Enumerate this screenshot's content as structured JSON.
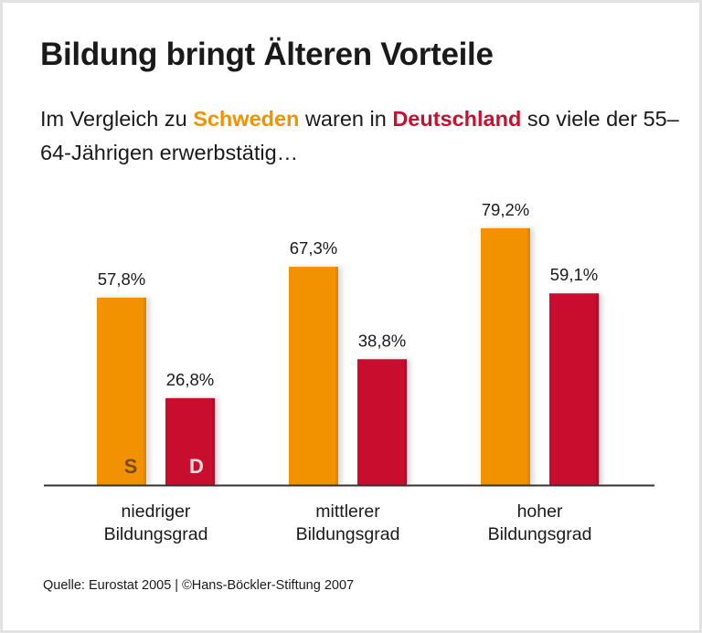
{
  "title": "Bildung bringt Älteren Vorteile",
  "subtitle": {
    "part1": "Im Vergleich zu ",
    "sweden": "Schweden",
    "part2": " waren in ",
    "germany": "Deutschland",
    "part3": " so viele der 55–64-Jährigen erwerbstätig…"
  },
  "source": "Quelle: Eurostat 2005 | ©Hans-Böckler-Stiftung 2007",
  "chart_data": {
    "type": "bar",
    "title": "Bildung bringt Älteren Vorteile",
    "categories": [
      [
        "niedriger",
        "Bildungsgrad"
      ],
      [
        "mittlerer",
        "Bildungsgrad"
      ],
      [
        "hoher",
        "Bildungsgrad"
      ]
    ],
    "series": [
      {
        "name": "S",
        "values": [
          57.8,
          67.3,
          79.2
        ],
        "labels": [
          "57,8%",
          "67,3%",
          "79,2%"
        ],
        "color": "#f39200",
        "letter_color": "#7a4a08"
      },
      {
        "name": "D",
        "values": [
          26.8,
          38.8,
          59.1
        ],
        "labels": [
          "26,8%",
          "38,8%",
          "59,1%"
        ],
        "color": "#c8102e",
        "letter_color": "#f8e0e0"
      }
    ],
    "unit": "%",
    "ylim": [
      0,
      100
    ],
    "grid": false
  }
}
